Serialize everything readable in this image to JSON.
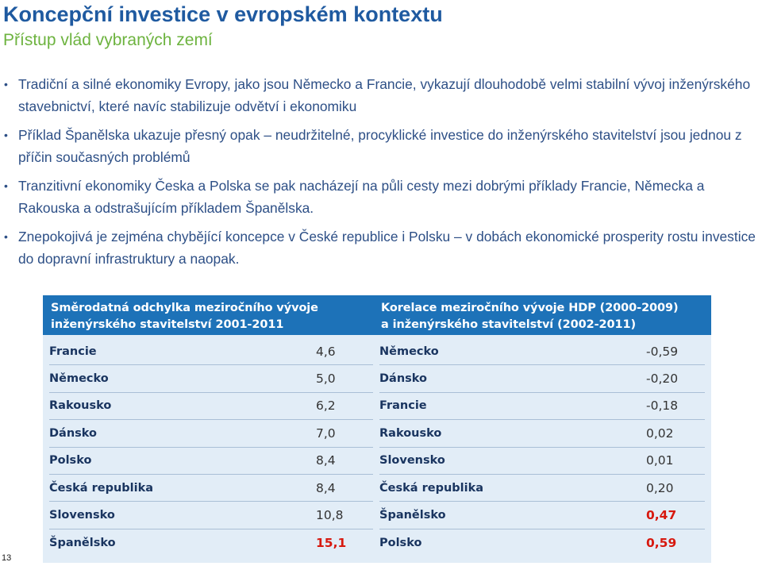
{
  "slide": {
    "title": "Koncepční investice v evropském kontextu",
    "subtitle": "Přístup vlád vybraných zemí",
    "page_number": "13"
  },
  "bullets": [
    "Tradiční a silné ekonomiky Evropy, jako jsou Německo a Francie, vykazují dlouhodobě velmi stabilní vývoj inženýrského stavebnictví, které navíc stabilizuje odvětví i ekonomiku",
    "Příklad Španělska ukazuje přesný opak – neudržitelné, procyklické investice do inženýrského stavitelství jsou jednou z příčin současných problémů",
    "Tranzitivní ekonomiky Česka a Polska se pak nacházejí na půli cesty mezi dobrými příklady Francie, Německa a Rakouska a odstrašujícím příkladem Španělska.",
    "Znepokojivá je zejména chybějící koncepce v České republice i Polsku – v dobách ekonomické prosperity rostu investice do dopravní infrastruktury a naopak."
  ],
  "table_left": {
    "header_line1": "Směrodatná odchylka meziročního vývoje",
    "header_line2": "inženýrského stavitelství 2001-2011",
    "rows": [
      {
        "country": "Francie",
        "value": "4,6",
        "highlight": false
      },
      {
        "country": "Německo",
        "value": "5,0",
        "highlight": false
      },
      {
        "country": "Rakousko",
        "value": "6,2",
        "highlight": false
      },
      {
        "country": "Dánsko",
        "value": "7,0",
        "highlight": false
      },
      {
        "country": "Polsko",
        "value": "8,4",
        "highlight": false
      },
      {
        "country": "Česká republika",
        "value": "8,4",
        "highlight": false
      },
      {
        "country": "Slovensko",
        "value": "10,8",
        "highlight": false
      },
      {
        "country": "Španělsko",
        "value": "15,1",
        "highlight": true
      }
    ]
  },
  "table_right": {
    "header_line1": "Korelace meziročního vývoje HDP (2000-2009)",
    "header_line2": "a inženýrského stavitelství (2002-2011)",
    "rows": [
      {
        "country": "Německo",
        "value": "-0,59",
        "highlight": false
      },
      {
        "country": "Dánsko",
        "value": "-0,20",
        "highlight": false
      },
      {
        "country": "Francie",
        "value": "-0,18",
        "highlight": false
      },
      {
        "country": "Rakousko",
        "value": "0,02",
        "highlight": false
      },
      {
        "country": "Slovensko",
        "value": "0,01",
        "highlight": false
      },
      {
        "country": "Česká republika",
        "value": "0,20",
        "highlight": false
      },
      {
        "country": "Španělsko",
        "value": "0,47",
        "highlight": true
      },
      {
        "country": "Polsko",
        "value": "0,59",
        "highlight": true
      }
    ]
  },
  "colors": {
    "title": "#1f5aa0",
    "subtitle": "#6db33f",
    "table_header": "#1d72b8",
    "table_body": "#e2edf7",
    "highlight_value": "#d7190f"
  }
}
